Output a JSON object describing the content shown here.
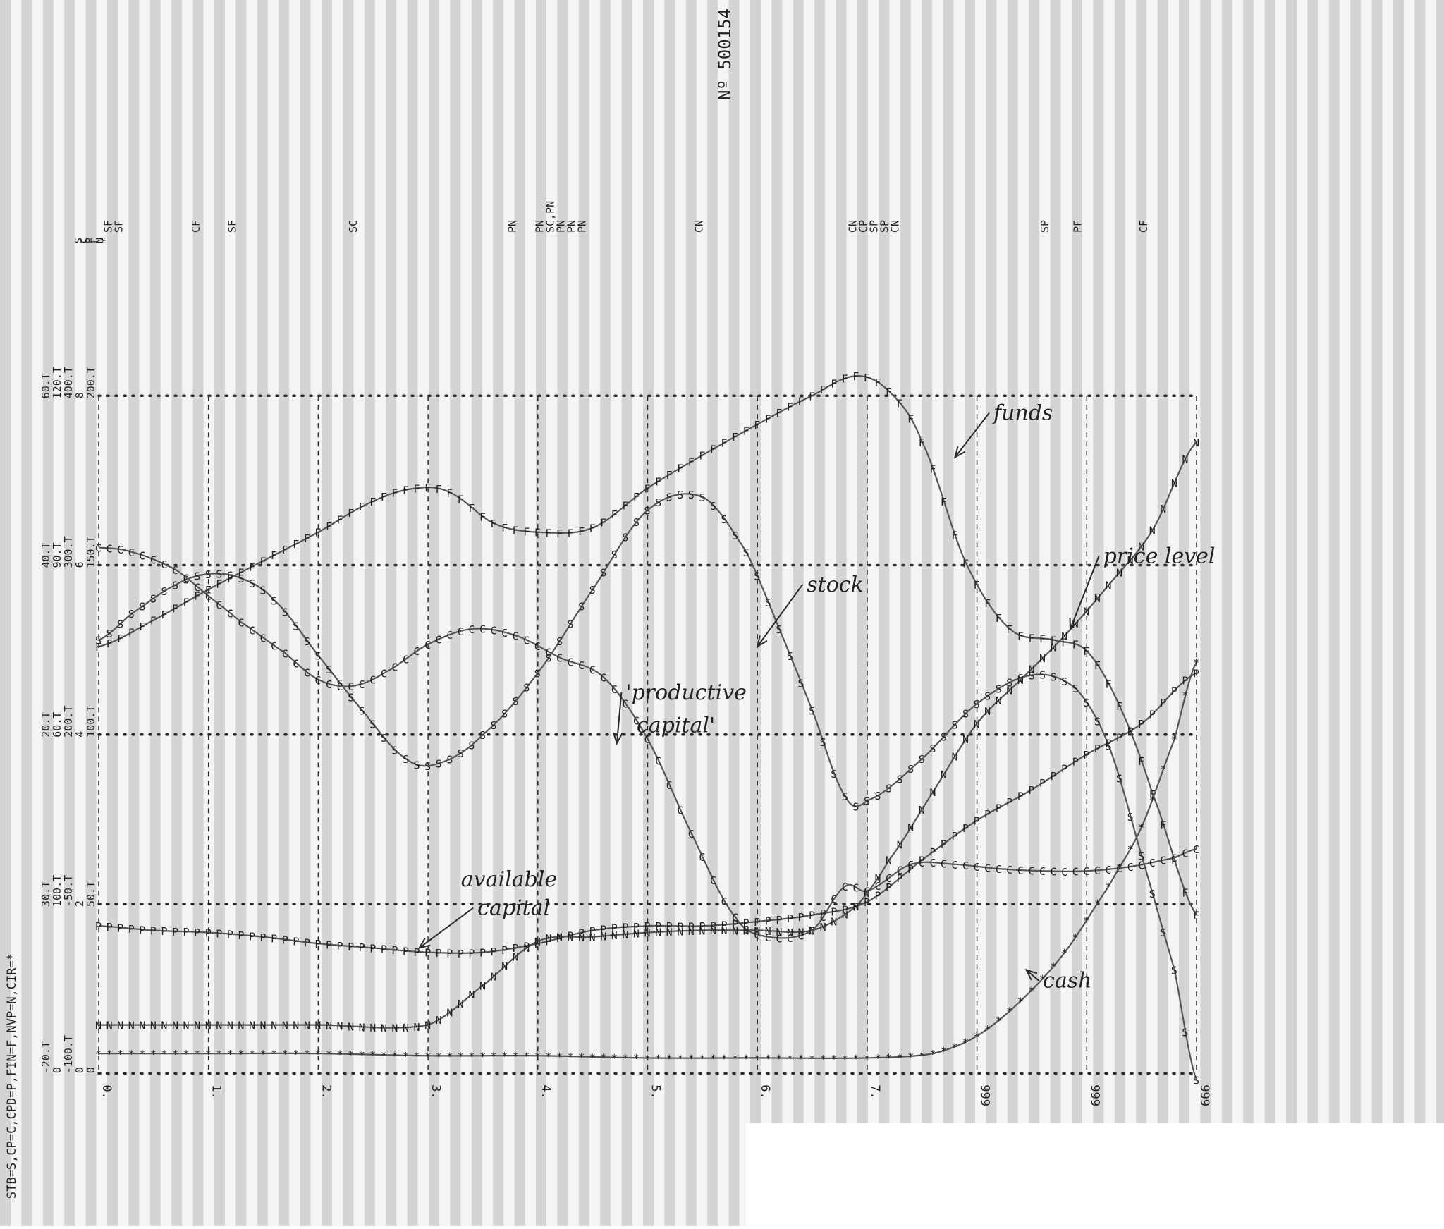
{
  "serial_number": "Nº 500154",
  "legend_text": "STB=S,CP=C,CPD=P,FIN=F,NVP=N,CIR=*",
  "chart_data": {
    "type": "line",
    "title": "",
    "x": {
      "ticks": [
        "0.",
        "1.",
        "2.",
        "3.",
        "4.",
        "5.",
        "6.",
        "7.",
        "999",
        "999",
        "999"
      ]
    },
    "y_scale_columns": [
      [
        "-20.T",
        "20.T",
        "40.T",
        "60.T"
      ],
      [
        "0",
        "60.T",
        "90.T",
        "120.T"
      ],
      [
        "-100.T",
        "200.T",
        "300.T",
        "400.T"
      ],
      [
        "0",
        "4",
        "6",
        "8"
      ],
      [
        "0",
        "100.T",
        "150.T",
        "200.T"
      ]
    ],
    "y_scale_zero_row": [
      "30.T",
      "100.T",
      "-50.T",
      "2",
      "50.T"
    ],
    "y_scale_headers": [
      "S",
      "C",
      "P",
      "F",
      "N",
      "*"
    ],
    "grid": true,
    "top_event_labels": [
      {
        "x": 0.12,
        "lines": [
          "SF",
          "SF"
        ]
      },
      {
        "x": 0.92,
        "lines": [
          "CF"
        ]
      },
      {
        "x": 1.25,
        "lines": [
          "SF"
        ]
      },
      {
        "x": 2.35,
        "lines": [
          "SC"
        ]
      },
      {
        "x": 3.8,
        "lines": [
          "PN"
        ]
      },
      {
        "x": 4.05,
        "lines": [
          "PN",
          "SC,PN",
          "PN",
          "PN",
          "PN"
        ]
      },
      {
        "x": 5.5,
        "lines": [
          "CN"
        ]
      },
      {
        "x": 6.9,
        "lines": [
          "CN",
          "CP",
          "SP",
          "SP",
          "CN"
        ]
      },
      {
        "x": 8.65,
        "lines": [
          "SP"
        ]
      },
      {
        "x": 8.95,
        "lines": [
          "PF"
        ]
      },
      {
        "x": 9.55,
        "lines": [
          "CF"
        ]
      }
    ],
    "series": [
      {
        "name": "funds",
        "marker": "F",
        "x": [
          0,
          0.5,
          1,
          1.5,
          2,
          2.5,
          2.9,
          3.2,
          3.6,
          4,
          4.5,
          5,
          5.5,
          6,
          6.5,
          6.9,
          7.2,
          7.5,
          7.9,
          8.3,
          8.7,
          9,
          9.3,
          9.6,
          10
        ],
        "y": [
          1.17,
          1.29,
          1.43,
          1.56,
          1.69,
          1.83,
          1.89,
          1.87,
          1.73,
          1.69,
          1.71,
          1.89,
          2.04,
          2.18,
          2.31,
          2.4,
          2.33,
          2.1,
          1.55,
          1.25,
          1.2,
          1.15,
          0.9,
          0.5,
          -0.05
        ]
      },
      {
        "name": "stock",
        "marker": "S",
        "x": [
          0,
          0.3,
          0.7,
          1,
          1.3,
          1.6,
          2,
          2.4,
          2.8,
          3.1,
          3.5,
          4,
          4.5,
          5,
          5.5,
          5.9,
          6.2,
          6.5,
          6.8,
          7,
          7.5,
          8,
          8.5,
          8.9,
          9.2,
          9.5,
          9.8,
          10
        ],
        "y": [
          1.2,
          1.32,
          1.45,
          1.5,
          1.48,
          1.38,
          1.13,
          0.88,
          0.66,
          0.64,
          0.77,
          1.05,
          1.43,
          1.79,
          1.85,
          1.6,
          1.25,
          0.88,
          0.49,
          0.47,
          0.66,
          0.91,
          1.04,
          0.98,
          0.72,
          0.22,
          -0.3,
          -0.8
        ]
      },
      {
        "name": "productive capital",
        "marker": "C",
        "x": [
          0,
          0.3,
          0.7,
          1,
          1.3,
          1.7,
          2,
          2.3,
          2.6,
          3,
          3.4,
          3.8,
          4.2,
          4.6,
          5,
          5.4,
          5.8,
          6.1,
          6.5,
          6.8,
          7,
          7.4,
          7.8,
          8.2,
          8.6,
          9,
          9.4,
          9.8,
          10
        ],
        "y": [
          1.62,
          1.6,
          1.52,
          1.4,
          1.28,
          1.14,
          1.02,
          0.99,
          1.05,
          1.18,
          1.25,
          1.22,
          1.12,
          1.03,
          0.75,
          0.32,
          -0.06,
          -0.15,
          -0.12,
          0.08,
          0.06,
          0.18,
          0.18,
          0.16,
          0.15,
          0.15,
          0.17,
          0.21,
          0.25
        ]
      },
      {
        "name": "available capital",
        "marker": "P",
        "x": [
          0,
          0.5,
          1,
          1.5,
          2,
          2.5,
          3,
          3.5,
          4,
          4.5,
          5,
          5.5,
          6,
          6.5,
          7,
          7.5,
          8,
          8.5,
          9,
          9.5,
          10
        ],
        "y": [
          -0.1,
          -0.12,
          -0.13,
          -0.15,
          -0.18,
          -0.2,
          -0.22,
          -0.22,
          -0.18,
          -0.12,
          -0.1,
          -0.1,
          -0.08,
          -0.05,
          0.01,
          0.2,
          0.38,
          0.52,
          0.68,
          0.82,
          1.05
        ]
      },
      {
        "name": "price level",
        "marker": "N",
        "x": [
          0,
          1,
          2,
          3,
          3.5,
          4,
          4.5,
          5,
          5.5,
          6,
          6.5,
          6.9,
          7.2,
          7.6,
          8,
          8.4,
          8.8,
          9.2,
          9.6,
          10
        ],
        "y": [
          -0.55,
          -0.55,
          -0.55,
          -0.55,
          -0.37,
          -0.17,
          -0.15,
          -0.13,
          -0.12,
          -0.12,
          -0.12,
          -0.01,
          0.2,
          0.51,
          0.82,
          1.02,
          1.22,
          1.45,
          1.7,
          2.1
        ]
      },
      {
        "name": "cash",
        "marker": "*",
        "x": [
          0,
          1,
          2,
          3,
          4,
          5,
          6,
          7,
          7.6,
          8,
          8.4,
          8.8,
          9.2,
          9.5,
          9.8,
          10
        ],
        "y": [
          -0.68,
          -0.68,
          -0.68,
          -0.69,
          -0.69,
          -0.7,
          -0.7,
          -0.7,
          -0.68,
          -0.6,
          -0.44,
          -0.22,
          0.08,
          0.35,
          0.75,
          1.1
        ]
      }
    ],
    "annotations": [
      {
        "text": "funds",
        "x": 8.15,
        "y": 2.2,
        "arrow_to": [
          7.8,
          2.03
        ]
      },
      {
        "text": "price level",
        "x": 9.15,
        "y": 1.55,
        "arrow_to": [
          8.85,
          1.25
        ]
      },
      {
        "text": "stock",
        "x": 6.45,
        "y": 1.42,
        "arrow_to": [
          6.0,
          1.17
        ]
      },
      {
        "text": "'productive",
        "x": 4.8,
        "y": 0.93,
        "arrow_to": [
          4.72,
          0.73
        ]
      },
      {
        "text": "capital'",
        "x": 4.9,
        "y": 0.78
      },
      {
        "text": "available",
        "x": 3.3,
        "y": 0.08
      },
      {
        "text": "capital",
        "x": 3.45,
        "y": -0.05,
        "arrow_to": [
          2.92,
          -0.2
        ]
      },
      {
        "text": "cash",
        "x": 8.6,
        "y": -0.38,
        "arrow_to": [
          8.45,
          -0.3
        ]
      }
    ]
  },
  "colors": {
    "ink": "#2a2a2a",
    "stripe": "#d4d4d4",
    "paper": "#f4f4f4",
    "pencil": "#555555"
  }
}
